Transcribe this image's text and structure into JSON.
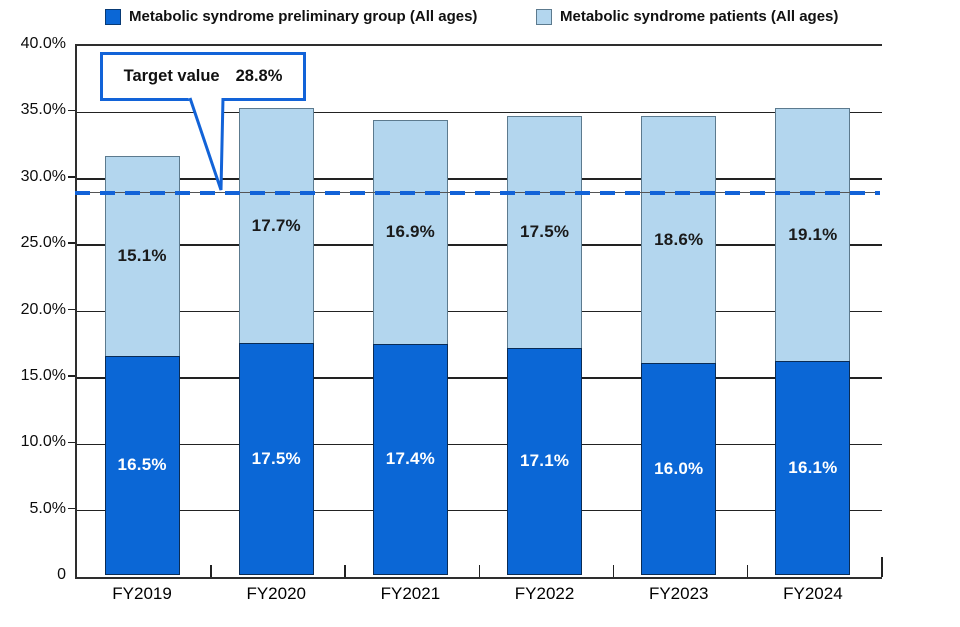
{
  "legend": {
    "items": [
      {
        "label": "Metabolic syndrome preliminary group (All ages)",
        "color": "#0b67d6",
        "border": "#083a75"
      },
      {
        "label": "Metabolic syndrome patients (All ages)",
        "color": "#b3d6ee",
        "border": "#5c7a8e"
      }
    ]
  },
  "target_callout": {
    "label": "Target value",
    "value": "28.8%"
  },
  "chart_data": {
    "type": "bar",
    "stacked": true,
    "title": "",
    "categories": [
      "FY2019",
      "FY2020",
      "FY2021",
      "FY2022",
      "FY2023",
      "FY2024"
    ],
    "series": [
      {
        "name": "Metabolic syndrome preliminary group (All ages)",
        "color": "#0b67d6",
        "border": "#0a2c55",
        "label_color": "#ffffff",
        "values": [
          16.5,
          17.5,
          17.4,
          17.1,
          16.0,
          16.1
        ],
        "labels": [
          "16.5%",
          "17.5%",
          "17.4%",
          "17.1%",
          "16.0%",
          "16.1%"
        ]
      },
      {
        "name": "Metabolic syndrome patients (All ages)",
        "color": "#b3d6ee",
        "border": "#5c7a8e",
        "label_color": "#1a1a1a",
        "values": [
          15.1,
          17.7,
          16.9,
          17.5,
          18.6,
          19.1
        ],
        "labels": [
          "15.1%",
          "17.7%",
          "16.9%",
          "17.5%",
          "18.6%",
          "19.1%"
        ]
      }
    ],
    "totals": [
      31.6,
      35.2,
      34.3,
      34.6,
      34.6,
      35.2
    ],
    "target": {
      "label": "Target value",
      "value": 28.8,
      "display": "28.8%",
      "line_color": "#1263d8"
    },
    "ylim": [
      0,
      40
    ],
    "yticks": [
      {
        "label": "40.0%",
        "value": 40
      },
      {
        "label": "35.0%",
        "value": 35
      },
      {
        "label": "30.0%",
        "value": 30
      },
      {
        "label": "25.0%",
        "value": 25
      },
      {
        "label": "20.0%",
        "value": 20
      },
      {
        "label": "15.0%",
        "value": 15
      },
      {
        "label": "10.0%",
        "value": 10
      },
      {
        "label": "5.0%",
        "value": 5
      },
      {
        "label": "0",
        "value": 0
      }
    ],
    "grid": true,
    "legend_position": "top"
  }
}
